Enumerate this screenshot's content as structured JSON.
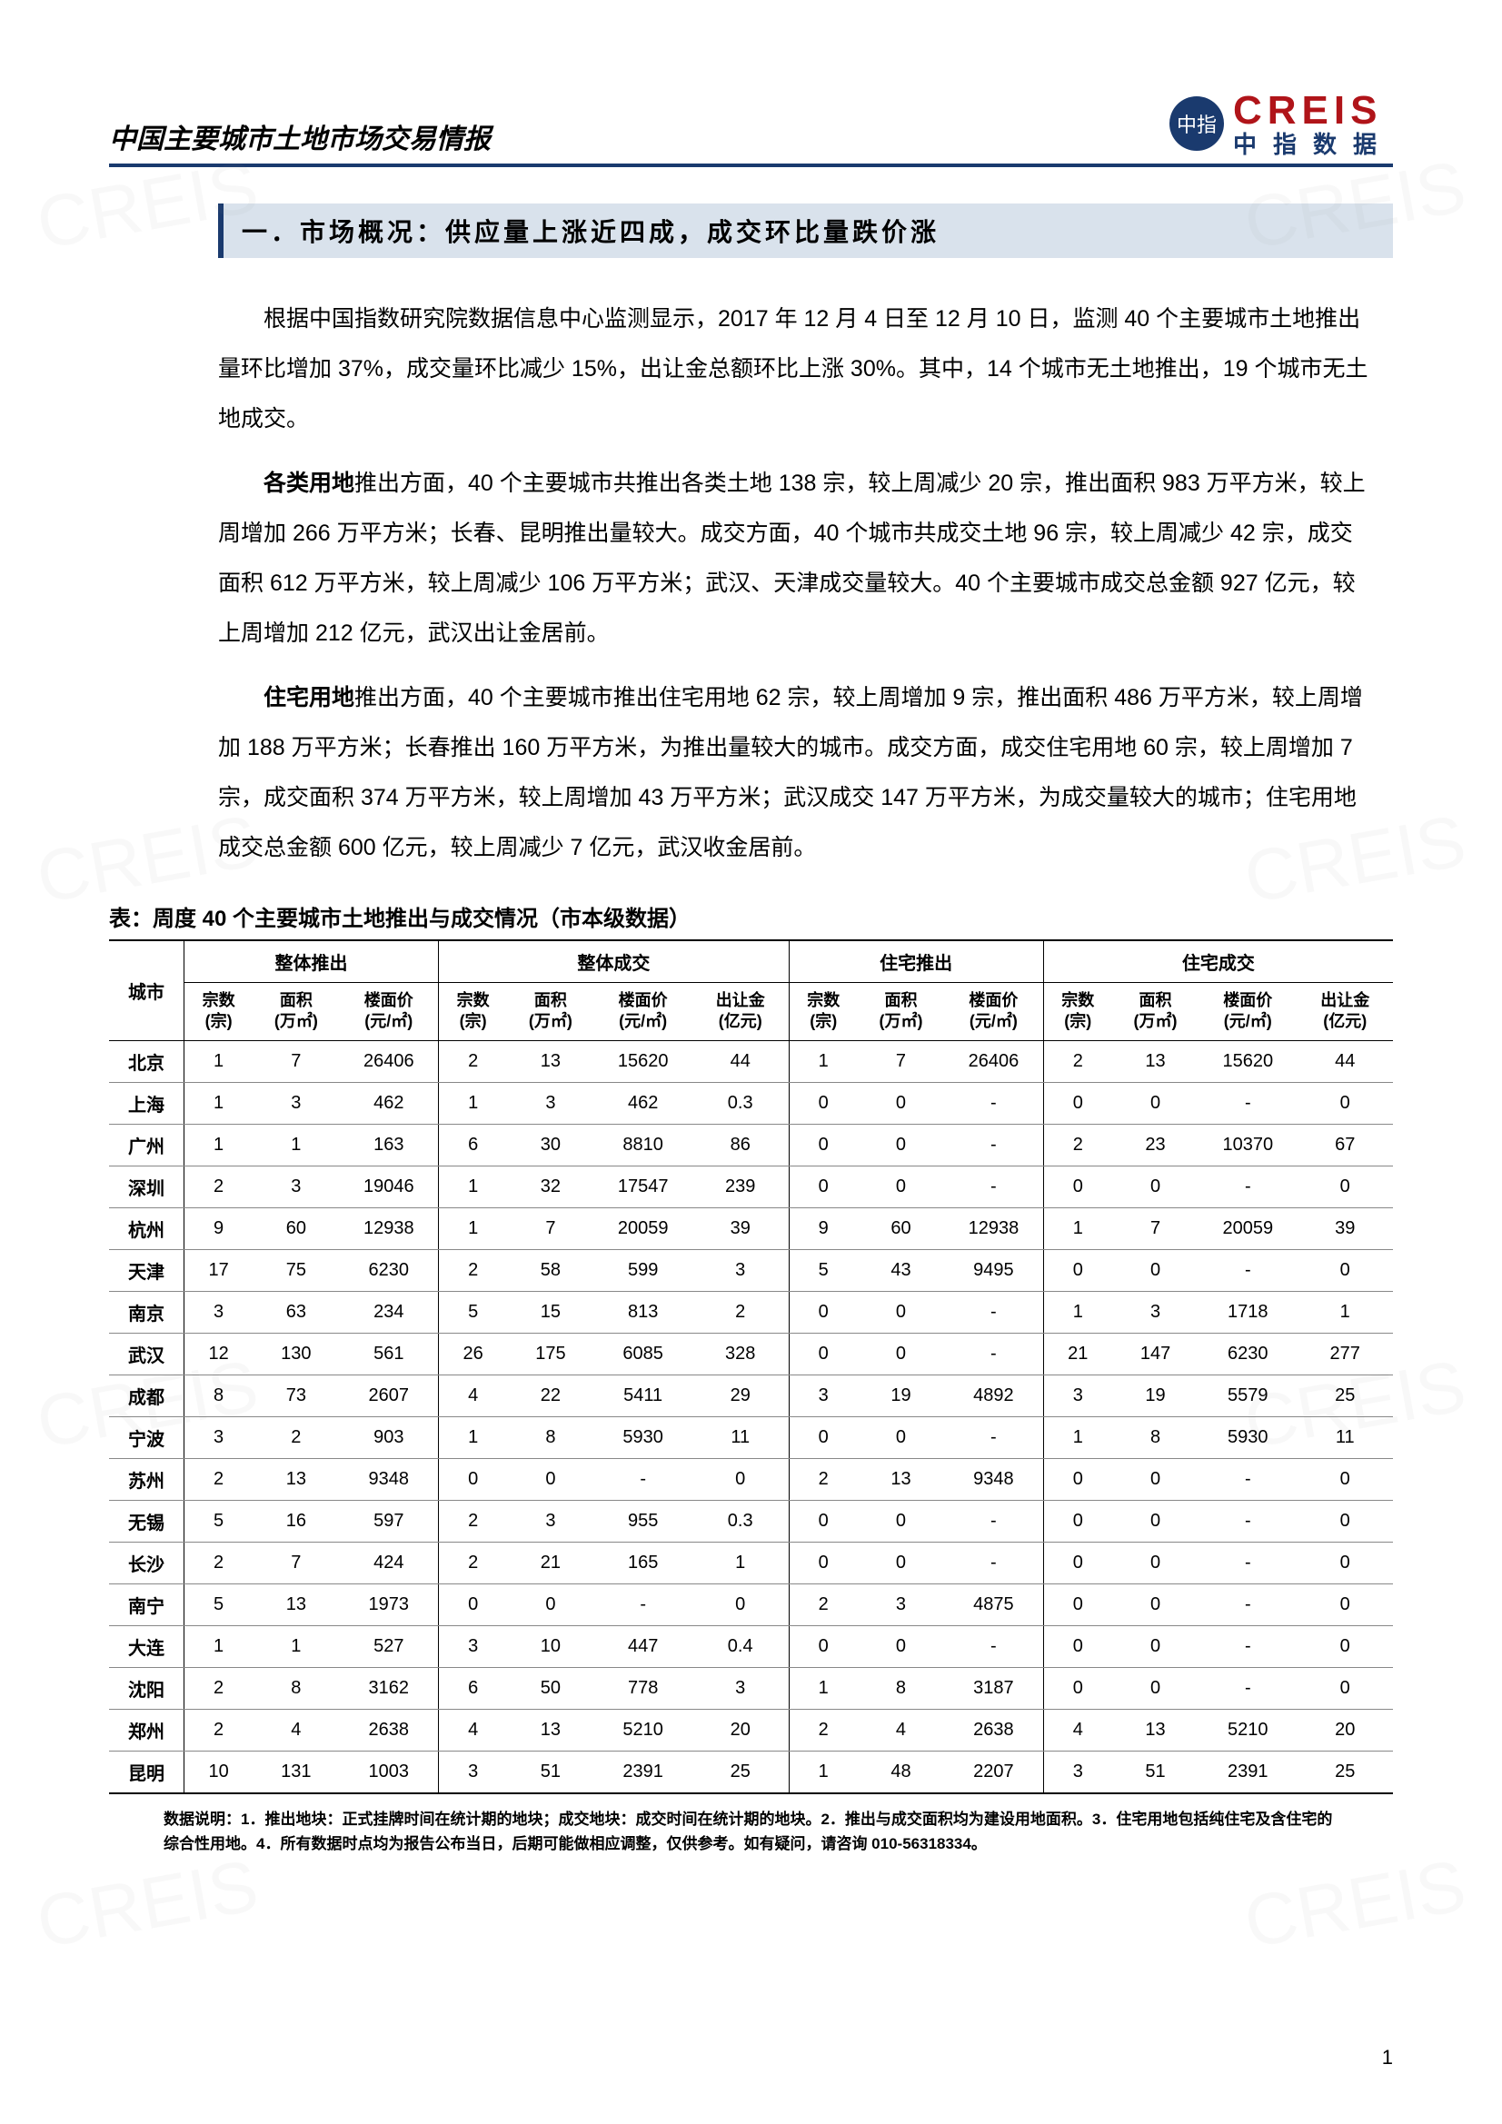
{
  "header": {
    "doc_title": "中国主要城市土地市场交易情报",
    "logo_en": "CREIS",
    "logo_cn": "中指数据",
    "logo_badge": "中指"
  },
  "section": {
    "title": "一．市场概况：供应量上涨近四成，成交环比量跌价涨"
  },
  "paragraphs": {
    "p1": "根据中国指数研究院数据信息中心监测显示，2017 年 12 月 4 日至 12 月 10 日，监测 40 个主要城市土地推出量环比增加 37%，成交量环比减少 15%，出让金总额环比上涨 30%。其中，14 个城市无土地推出，19 个城市无土地成交。",
    "p2_lead": "各类用地",
    "p2_rest": "推出方面，40 个主要城市共推出各类土地 138 宗，较上周减少 20 宗，推出面积 983 万平方米，较上周增加 266 万平方米；长春、昆明推出量较大。成交方面，40 个城市共成交土地 96 宗，较上周减少 42 宗，成交面积 612 万平方米，较上周减少 106 万平方米；武汉、天津成交量较大。40 个主要城市成交总金额 927 亿元，较上周增加 212 亿元，武汉出让金居前。",
    "p3_lead": "住宅用地",
    "p3_rest": "推出方面，40 个主要城市推出住宅用地 62 宗，较上周增加 9 宗，推出面积 486 万平方米，较上周增加 188 万平方米；长春推出 160 万平方米，为推出量较大的城市。成交方面，成交住宅用地 60 宗，较上周增加 7 宗，成交面积 374 万平方米，较上周增加 43 万平方米；武汉成交 147 万平方米，为成交量较大的城市；住宅用地成交总金额 600 亿元，较上周减少 7 亿元，武汉收金居前。"
  },
  "table": {
    "caption": "表：周度 40 个主要城市土地推出与成交情况（市本级数据）",
    "groups": [
      "整体推出",
      "整体成交",
      "住宅推出",
      "住宅成交"
    ],
    "city_header": "城市",
    "sub_headers": {
      "zong": "宗数\n(宗)",
      "mianji": "面积\n(万㎡)",
      "loumian": "楼面价\n(元/㎡)",
      "churang": "出让金\n(亿元)"
    },
    "rows": [
      {
        "city": "北京",
        "c": [
          "1",
          "7",
          "26406",
          "2",
          "13",
          "15620",
          "44",
          "1",
          "7",
          "26406",
          "2",
          "13",
          "15620",
          "44"
        ]
      },
      {
        "city": "上海",
        "c": [
          "1",
          "3",
          "462",
          "1",
          "3",
          "462",
          "0.3",
          "0",
          "0",
          "-",
          "0",
          "0",
          "-",
          "0"
        ]
      },
      {
        "city": "广州",
        "c": [
          "1",
          "1",
          "163",
          "6",
          "30",
          "8810",
          "86",
          "0",
          "0",
          "-",
          "2",
          "23",
          "10370",
          "67"
        ]
      },
      {
        "city": "深圳",
        "c": [
          "2",
          "3",
          "19046",
          "1",
          "32",
          "17547",
          "239",
          "0",
          "0",
          "-",
          "0",
          "0",
          "-",
          "0"
        ]
      },
      {
        "city": "杭州",
        "c": [
          "9",
          "60",
          "12938",
          "1",
          "7",
          "20059",
          "39",
          "9",
          "60",
          "12938",
          "1",
          "7",
          "20059",
          "39"
        ]
      },
      {
        "city": "天津",
        "c": [
          "17",
          "75",
          "6230",
          "2",
          "58",
          "599",
          "3",
          "5",
          "43",
          "9495",
          "0",
          "0",
          "-",
          "0"
        ]
      },
      {
        "city": "南京",
        "c": [
          "3",
          "63",
          "234",
          "5",
          "15",
          "813",
          "2",
          "0",
          "0",
          "-",
          "1",
          "3",
          "1718",
          "1"
        ]
      },
      {
        "city": "武汉",
        "c": [
          "12",
          "130",
          "561",
          "26",
          "175",
          "6085",
          "328",
          "0",
          "0",
          "-",
          "21",
          "147",
          "6230",
          "277"
        ]
      },
      {
        "city": "成都",
        "c": [
          "8",
          "73",
          "2607",
          "4",
          "22",
          "5411",
          "29",
          "3",
          "19",
          "4892",
          "3",
          "19",
          "5579",
          "25"
        ]
      },
      {
        "city": "宁波",
        "c": [
          "3",
          "2",
          "903",
          "1",
          "8",
          "5930",
          "11",
          "0",
          "0",
          "-",
          "1",
          "8",
          "5930",
          "11"
        ]
      },
      {
        "city": "苏州",
        "c": [
          "2",
          "13",
          "9348",
          "0",
          "0",
          "-",
          "0",
          "2",
          "13",
          "9348",
          "0",
          "0",
          "-",
          "0"
        ]
      },
      {
        "city": "无锡",
        "c": [
          "5",
          "16",
          "597",
          "2",
          "3",
          "955",
          "0.3",
          "0",
          "0",
          "-",
          "0",
          "0",
          "-",
          "0"
        ]
      },
      {
        "city": "长沙",
        "c": [
          "2",
          "7",
          "424",
          "2",
          "21",
          "165",
          "1",
          "0",
          "0",
          "-",
          "0",
          "0",
          "-",
          "0"
        ]
      },
      {
        "city": "南宁",
        "c": [
          "5",
          "13",
          "1973",
          "0",
          "0",
          "-",
          "0",
          "2",
          "3",
          "4875",
          "0",
          "0",
          "-",
          "0"
        ]
      },
      {
        "city": "大连",
        "c": [
          "1",
          "1",
          "527",
          "3",
          "10",
          "447",
          "0.4",
          "0",
          "0",
          "-",
          "0",
          "0",
          "-",
          "0"
        ]
      },
      {
        "city": "沈阳",
        "c": [
          "2",
          "8",
          "3162",
          "6",
          "50",
          "778",
          "3",
          "1",
          "8",
          "3187",
          "0",
          "0",
          "-",
          "0"
        ]
      },
      {
        "city": "郑州",
        "c": [
          "2",
          "4",
          "2638",
          "4",
          "13",
          "5210",
          "20",
          "2",
          "4",
          "2638",
          "4",
          "13",
          "5210",
          "20"
        ]
      },
      {
        "city": "昆明",
        "c": [
          "10",
          "131",
          "1003",
          "3",
          "51",
          "2391",
          "25",
          "1",
          "48",
          "2207",
          "3",
          "51",
          "2391",
          "25"
        ]
      }
    ]
  },
  "footnote": "数据说明：1．推出地块：正式挂牌时间在统计期的地块；成交地块：成交时间在统计期的地块。2．推出与成交面积均为建设用地面积。3．住宅用地包括纯住宅及含住宅的综合性用地。4．所有数据时点均为报告公布当日，后期可能做相应调整，仅供参考。如有疑问，请咨询 010-56318334。",
  "page_number": "1",
  "watermark_text": "CREIS",
  "colors": {
    "header_rule": "#1a3a6e",
    "section_bg": "#d9e2ec",
    "section_border": "#1a3a6e",
    "logo_red": "#b01419",
    "logo_blue": "#1a3a6e",
    "row_border": "#888888"
  }
}
